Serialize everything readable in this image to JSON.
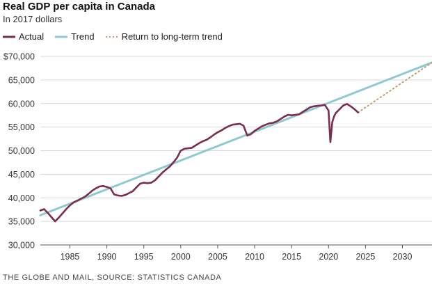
{
  "title": "Real GDP per capita in Canada",
  "subtitle": "In 2017 dollars",
  "source": "THE GLOBE AND MAIL, SOURCE: STATISTICS CANADA",
  "legend": [
    {
      "label": "Actual",
      "color": "#7b2c4f",
      "style": "solid"
    },
    {
      "label": "Trend",
      "color": "#8fcad3",
      "style": "solid"
    },
    {
      "label": "Return to long-term trend",
      "color": "#c59a6a",
      "style": "dotted"
    }
  ],
  "chart_data": {
    "type": "line",
    "title": "Real GDP per capita in Canada",
    "subtitle": "In 2017 dollars",
    "xlabel": "",
    "ylabel": "",
    "xlim": [
      1981,
      2034
    ],
    "ylim": [
      30000,
      70000
    ],
    "y_ticks": [
      30000,
      35000,
      40000,
      45000,
      50000,
      55000,
      60000,
      65000,
      70000
    ],
    "y_tick_labels": [
      "30,000",
      "35,000",
      "40,000",
      "45,000",
      "50,000",
      "55,000",
      "60,000",
      "65,000",
      "$70,000"
    ],
    "x_ticks": [
      1985,
      1990,
      1995,
      2000,
      2005,
      2010,
      2015,
      2020,
      2025,
      2030
    ],
    "x_tick_labels": [
      "1985",
      "1990",
      "1995",
      "2000",
      "2005",
      "2010",
      "2015",
      "2020",
      "2025",
      "2030"
    ],
    "grid": "horizontal",
    "series": [
      {
        "name": "Actual",
        "color": "#7b2c4f",
        "x": [
          1981,
          1981.5,
          1982,
          1982.5,
          1983,
          1983.5,
          1984,
          1984.5,
          1985,
          1985.5,
          1986,
          1986.5,
          1987,
          1987.5,
          1988,
          1988.5,
          1989,
          1989.5,
          1990,
          1990.5,
          1991,
          1991.5,
          1992,
          1992.5,
          1993,
          1993.5,
          1994,
          1994.5,
          1995,
          1995.5,
          1996,
          1996.5,
          1997,
          1997.5,
          1998,
          1998.5,
          1999,
          1999.5,
          2000,
          2000.5,
          2001,
          2001.5,
          2002,
          2002.5,
          2003,
          2003.5,
          2004,
          2004.5,
          2005,
          2005.5,
          2006,
          2006.5,
          2007,
          2007.5,
          2008,
          2008.5,
          2009,
          2009.5,
          2010,
          2010.5,
          2011,
          2011.5,
          2012,
          2012.5,
          2013,
          2013.5,
          2014,
          2014.5,
          2015,
          2015.5,
          2016,
          2016.5,
          2017,
          2017.5,
          2018,
          2018.5,
          2019,
          2019.5,
          2020,
          2020.25,
          2020.5,
          2020.75,
          2021,
          2021.5,
          2022,
          2022.5,
          2023,
          2023.5,
          2024
        ],
        "y": [
          37300,
          37600,
          36800,
          35900,
          35000,
          35800,
          36700,
          37600,
          38400,
          39000,
          39400,
          39800,
          40200,
          40800,
          41500,
          42000,
          42400,
          42500,
          42300,
          42000,
          40700,
          40500,
          40400,
          40600,
          41000,
          41400,
          42200,
          43000,
          43200,
          43100,
          43200,
          43700,
          44500,
          45300,
          46000,
          46600,
          47500,
          48500,
          50000,
          50400,
          50500,
          50600,
          51100,
          51600,
          52000,
          52300,
          52800,
          53400,
          53900,
          54300,
          54800,
          55200,
          55500,
          55600,
          55700,
          55300,
          53200,
          53500,
          54200,
          54700,
          55200,
          55500,
          55800,
          55900,
          56200,
          56700,
          57200,
          57600,
          57500,
          57600,
          57700,
          58200,
          58700,
          59200,
          59400,
          59500,
          59600,
          59700,
          58500,
          51800,
          56000,
          57300,
          58000,
          58800,
          59600,
          59900,
          59400,
          58800,
          58100
        ]
      },
      {
        "name": "Trend",
        "color": "#8fcad3",
        "x": [
          1981,
          2034
        ],
        "y": [
          36300,
          68700
        ]
      },
      {
        "name": "Return to long-term trend",
        "color": "#c59a6a",
        "style": "dotted",
        "x": [
          2024,
          2034
        ],
        "y": [
          58100,
          68700
        ]
      }
    ]
  }
}
